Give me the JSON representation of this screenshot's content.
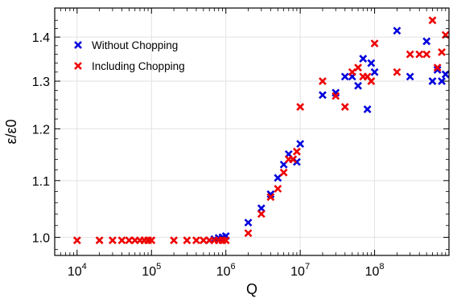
{
  "chart_data": {
    "type": "scatter",
    "xlabel": "Q",
    "ylabel": "ε/ε0",
    "x_scale": "log",
    "y_scale": "log",
    "xlim": [
      5000,
      1000000000
    ],
    "ylim": [
      0.97,
      1.47
    ],
    "x_major_ticks": [
      {
        "value": 10000,
        "base": "10",
        "exp": "4"
      },
      {
        "value": 100000,
        "base": "10",
        "exp": "5"
      },
      {
        "value": 1000000,
        "base": "10",
        "exp": "6"
      },
      {
        "value": 10000000,
        "base": "10",
        "exp": "7"
      },
      {
        "value": 100000000,
        "base": "10",
        "exp": "8"
      }
    ],
    "y_ticks": [
      {
        "value": 1.0,
        "label": "1.0"
      },
      {
        "value": 1.1,
        "label": "1.1"
      },
      {
        "value": 1.2,
        "label": "1.2"
      },
      {
        "value": 1.3,
        "label": "1.3"
      },
      {
        "value": 1.4,
        "label": "1.4"
      }
    ],
    "grid": true,
    "legend_position": "top-left",
    "marker": "x",
    "series": [
      {
        "name": "Without Chopping",
        "color": "#0000dd",
        "points": [
          [
            600000,
            0.995
          ],
          [
            700000,
            0.997
          ],
          [
            800000,
            0.999
          ],
          [
            900000,
            1.0
          ],
          [
            1000000,
            1.002
          ],
          [
            2000000,
            1.025
          ],
          [
            3000000,
            1.05
          ],
          [
            4000000,
            1.075
          ],
          [
            5000000,
            1.105
          ],
          [
            6000000,
            1.13
          ],
          [
            7000000,
            1.15
          ],
          [
            8000000,
            1.14
          ],
          [
            9000000,
            1.135
          ],
          [
            10000000,
            1.17
          ],
          [
            20000000,
            1.27
          ],
          [
            30000000,
            1.275
          ],
          [
            40000000,
            1.31
          ],
          [
            50000000,
            1.31
          ],
          [
            60000000,
            1.29
          ],
          [
            70000000,
            1.35
          ],
          [
            80000000,
            1.24
          ],
          [
            90000000,
            1.34
          ],
          [
            100000000,
            1.32
          ],
          [
            200000000,
            1.415
          ],
          [
            300000000,
            1.31
          ],
          [
            500000000,
            1.39
          ],
          [
            600000000,
            1.3
          ],
          [
            700000000,
            1.325
          ],
          [
            800000000,
            1.3
          ],
          [
            900000000,
            1.315
          ]
        ]
      },
      {
        "name": "Including Chopping",
        "color": "#ee0000",
        "points": [
          [
            10000,
            0.995
          ],
          [
            20000,
            0.995
          ],
          [
            30000,
            0.995
          ],
          [
            40000,
            0.995
          ],
          [
            50000,
            0.995
          ],
          [
            60000,
            0.995
          ],
          [
            70000,
            0.995
          ],
          [
            80000,
            0.995
          ],
          [
            90000,
            0.995
          ],
          [
            100000,
            0.995
          ],
          [
            200000,
            0.995
          ],
          [
            300000,
            0.995
          ],
          [
            400000,
            0.995
          ],
          [
            500000,
            0.995
          ],
          [
            600000,
            0.995
          ],
          [
            700000,
            0.995
          ],
          [
            800000,
            0.995
          ],
          [
            900000,
            0.995
          ],
          [
            1000000,
            0.995
          ],
          [
            2000000,
            1.007
          ],
          [
            3000000,
            1.04
          ],
          [
            4000000,
            1.07
          ],
          [
            5000000,
            1.085
          ],
          [
            6000000,
            1.115
          ],
          [
            7000000,
            1.14
          ],
          [
            8000000,
            1.14
          ],
          [
            9000000,
            1.155
          ],
          [
            10000000,
            1.245
          ],
          [
            20000000,
            1.3
          ],
          [
            30000000,
            1.268
          ],
          [
            40000000,
            1.245
          ],
          [
            50000000,
            1.32
          ],
          [
            60000000,
            1.33
          ],
          [
            70000000,
            1.31
          ],
          [
            80000000,
            1.31
          ],
          [
            90000000,
            1.3
          ],
          [
            100000000,
            1.385
          ],
          [
            200000000,
            1.32
          ],
          [
            300000000,
            1.36
          ],
          [
            400000000,
            1.36
          ],
          [
            500000000,
            1.36
          ],
          [
            600000000,
            1.44
          ],
          [
            700000000,
            1.33
          ],
          [
            800000000,
            1.365
          ],
          [
            900000000,
            1.405
          ]
        ]
      }
    ]
  }
}
